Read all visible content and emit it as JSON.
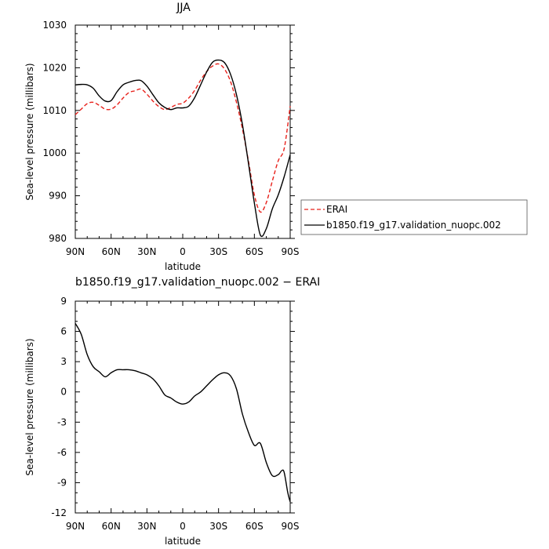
{
  "chart_data": [
    {
      "type": "line",
      "title": "JJA",
      "xlabel": "latitude",
      "ylabel": "Sea-level pressure (millibars)",
      "x_ticks": [
        {
          "value": -90,
          "label": "90N"
        },
        {
          "value": -60,
          "label": "60N"
        },
        {
          "value": -30,
          "label": "30N"
        },
        {
          "value": 0,
          "label": "0"
        },
        {
          "value": 30,
          "label": "30S"
        },
        {
          "value": 60,
          "label": "60S"
        },
        {
          "value": 90,
          "label": "90S"
        }
      ],
      "y_ticks": [
        980,
        990,
        1000,
        1010,
        1020,
        1030
      ],
      "xlim": [
        -90,
        90
      ],
      "ylim": [
        980,
        1030
      ],
      "grid": false,
      "legend": "outside-right",
      "series": [
        {
          "name": "ERAI",
          "color": "#e8201a",
          "dash": "dashed",
          "x": [
            -90,
            -85,
            -80,
            -75,
            -70,
            -65,
            -60,
            -55,
            -50,
            -45,
            -40,
            -35,
            -30,
            -25,
            -20,
            -15,
            -10,
            -5,
            0,
            5,
            10,
            15,
            20,
            25,
            30,
            35,
            40,
            45,
            50,
            55,
            60,
            65,
            70,
            75,
            80,
            85,
            90
          ],
          "y": [
            1009,
            1010.3,
            1011.6,
            1011.9,
            1011.2,
            1010.3,
            1010.3,
            1011.3,
            1012.9,
            1014.2,
            1014.6,
            1015,
            1013.8,
            1012.2,
            1010.9,
            1010.2,
            1010.7,
            1011.4,
            1011.7,
            1012.9,
            1014.7,
            1017.1,
            1019.1,
            1020.4,
            1020.9,
            1019.7,
            1016.8,
            1011.9,
            1005.7,
            998.2,
            990.2,
            986.2,
            988.4,
            993.4,
            998.2,
            1001.1,
            1011
          ]
        },
        {
          "name": "b1850.f19_g17.validation_nuopc.002",
          "color": "#000000",
          "dash": "solid",
          "x": [
            -90,
            -85,
            -80,
            -75,
            -70,
            -65,
            -60,
            -55,
            -50,
            -45,
            -40,
            -35,
            -30,
            -25,
            -20,
            -15,
            -10,
            -5,
            0,
            5,
            10,
            15,
            20,
            25,
            30,
            35,
            40,
            45,
            50,
            55,
            60,
            65,
            70,
            75,
            80,
            85,
            90
          ],
          "y": [
            1016,
            1016.1,
            1016,
            1015.2,
            1013.4,
            1012.2,
            1012.3,
            1014.4,
            1016,
            1016.6,
            1017,
            1017,
            1015.7,
            1013.7,
            1011.8,
            1010.7,
            1010.2,
            1010.6,
            1010.6,
            1011,
            1013,
            1016,
            1019,
            1021.3,
            1021.8,
            1021.2,
            1018.5,
            1013.7,
            1006.7,
            997.7,
            988.3,
            980.8,
            982.3,
            986.9,
            990.2,
            994.5,
            999.6
          ]
        }
      ]
    },
    {
      "type": "line",
      "title": "b1850.f19_g17.validation_nuopc.002 − ERAI",
      "xlabel": "latitude",
      "ylabel": "Sea-level pressure (millibars)",
      "x_ticks": [
        {
          "value": -90,
          "label": "90N"
        },
        {
          "value": -60,
          "label": "60N"
        },
        {
          "value": -30,
          "label": "30N"
        },
        {
          "value": 0,
          "label": "0"
        },
        {
          "value": 30,
          "label": "30S"
        },
        {
          "value": 60,
          "label": "60S"
        },
        {
          "value": 90,
          "label": "90S"
        }
      ],
      "y_ticks": [
        -12,
        -9,
        -6,
        -3,
        0,
        3,
        6,
        9
      ],
      "xlim": [
        -90,
        90
      ],
      "ylim": [
        -12,
        9
      ],
      "grid": false,
      "series": [
        {
          "color": "#000000",
          "dash": "solid",
          "x": [
            -90,
            -85,
            -80,
            -75,
            -70,
            -65,
            -60,
            -55,
            -50,
            -45,
            -40,
            -35,
            -30,
            -25,
            -20,
            -15,
            -10,
            -5,
            0,
            5,
            10,
            15,
            20,
            25,
            30,
            35,
            40,
            45,
            50,
            55,
            60,
            65,
            70,
            75,
            80,
            83,
            85,
            88,
            90
          ],
          "y": [
            6.8,
            5.7,
            3.7,
            2.5,
            2,
            1.5,
            1.9,
            2.2,
            2.2,
            2.2,
            2.1,
            1.9,
            1.7,
            1.3,
            0.6,
            -0.3,
            -0.6,
            -1,
            -1.2,
            -1,
            -0.4,
            0,
            0.6,
            1.2,
            1.7,
            1.9,
            1.6,
            0.3,
            -2.2,
            -4,
            -5.3,
            -5.1,
            -7,
            -8.3,
            -8.2,
            -7.8,
            -8,
            -10,
            -10.9
          ]
        }
      ]
    }
  ]
}
